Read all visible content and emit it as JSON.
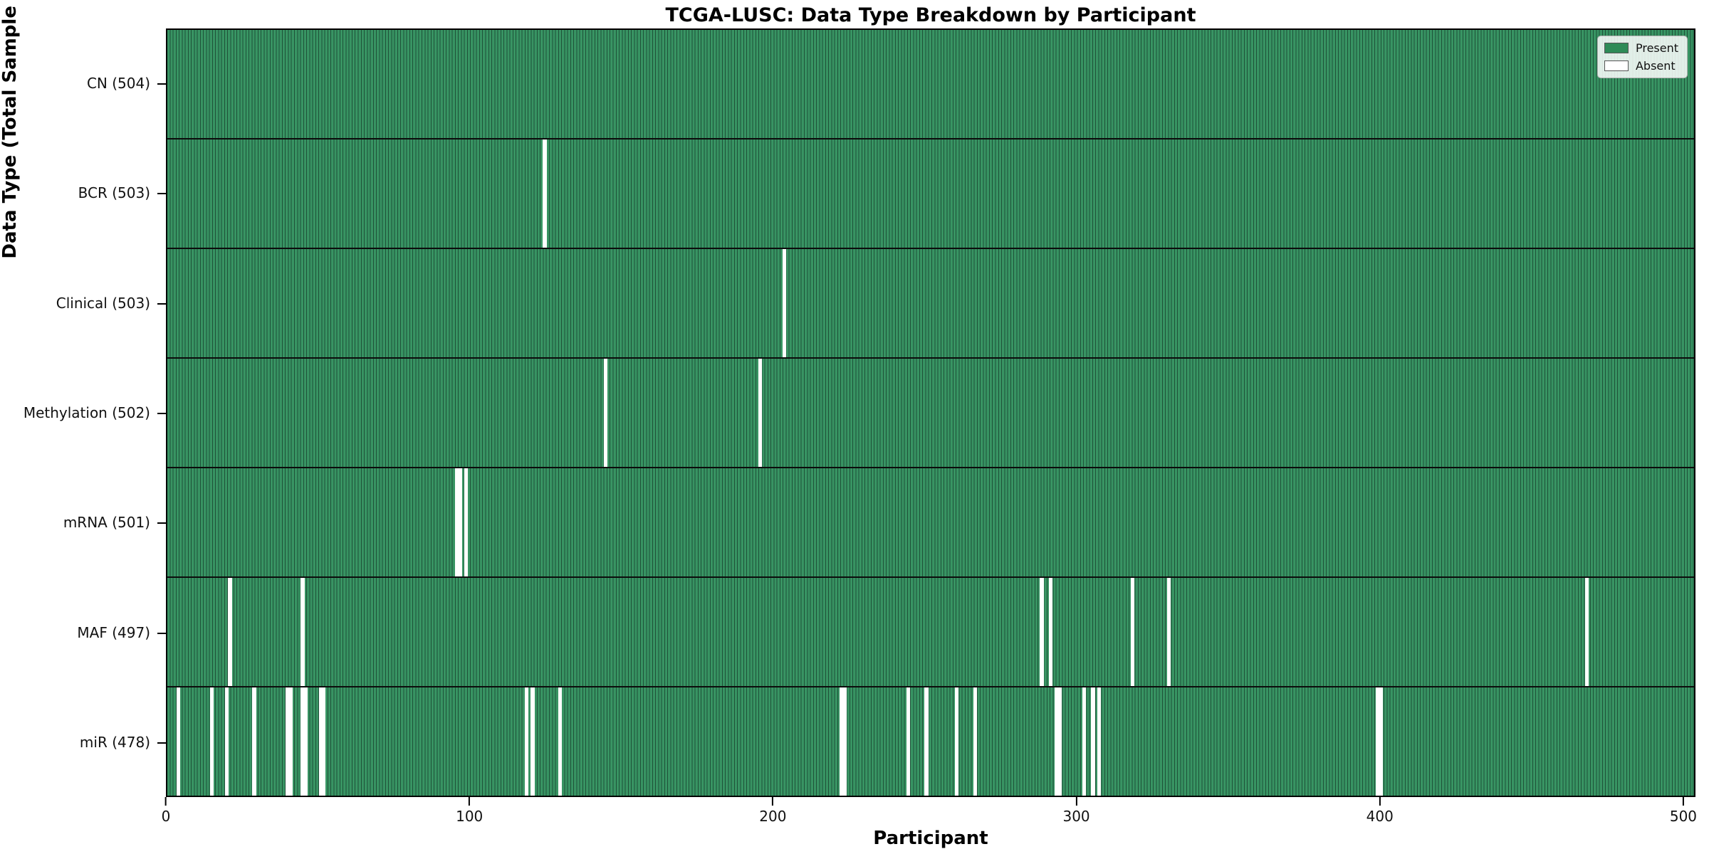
{
  "title": "TCGA-LUSC: Data Type Breakdown by Participant",
  "colors": {
    "present_fill": "#389463",
    "cell_edge": "#1e5138",
    "absent": "#ffffff",
    "row_divider": "#0c0c0c",
    "legend_present_swatch": "#2e8b57",
    "background": "#ffffff"
  },
  "chart_data": {
    "type": "heatmap",
    "title": "TCGA-LUSC: Data Type Breakdown by Participant",
    "xlabel": "Participant",
    "ylabel": "Data Type (Total Sample Count)",
    "x_ticks": [
      0,
      100,
      200,
      300,
      400,
      500
    ],
    "x_range": [
      0,
      504
    ],
    "n_participants": 504,
    "grid": false,
    "legend": {
      "position": "upper right",
      "entries": [
        {
          "label": "Present",
          "color": "#2e8b57"
        },
        {
          "label": "Absent",
          "color": "#ffffff"
        }
      ]
    },
    "rows": [
      {
        "key": "cn",
        "label": "CN (504)",
        "data_type": "CN",
        "total_samples": 504,
        "absent_participants": []
      },
      {
        "key": "bcr",
        "label": "BCR (503)",
        "data_type": "BCR",
        "total_samples": 503,
        "absent_participants": [
          124
        ]
      },
      {
        "key": "clinical",
        "label": "Clinical (503)",
        "data_type": "Clinical",
        "total_samples": 503,
        "absent_participants": [
          203
        ]
      },
      {
        "key": "methylation",
        "label": "Methylation (502)",
        "data_type": "Methylation",
        "total_samples": 502,
        "absent_participants": [
          144,
          195
        ]
      },
      {
        "key": "mrna",
        "label": "mRNA (501)",
        "data_type": "mRNA",
        "total_samples": 501,
        "absent_participants": [
          95,
          96,
          98
        ]
      },
      {
        "key": "maf",
        "label": "MAF (497)",
        "data_type": "MAF",
        "total_samples": 497,
        "absent_participants": [
          20,
          44,
          288,
          291,
          318,
          330,
          468
        ]
      },
      {
        "key": "mir",
        "label": "miR (478)",
        "data_type": "miR",
        "total_samples": 478,
        "absent_participants": [
          3,
          14,
          19,
          28,
          39,
          40,
          44,
          45,
          50,
          51,
          118,
          120,
          129,
          222,
          223,
          244,
          250,
          260,
          266,
          293,
          294,
          302,
          305,
          307,
          399,
          400
        ]
      }
    ]
  }
}
